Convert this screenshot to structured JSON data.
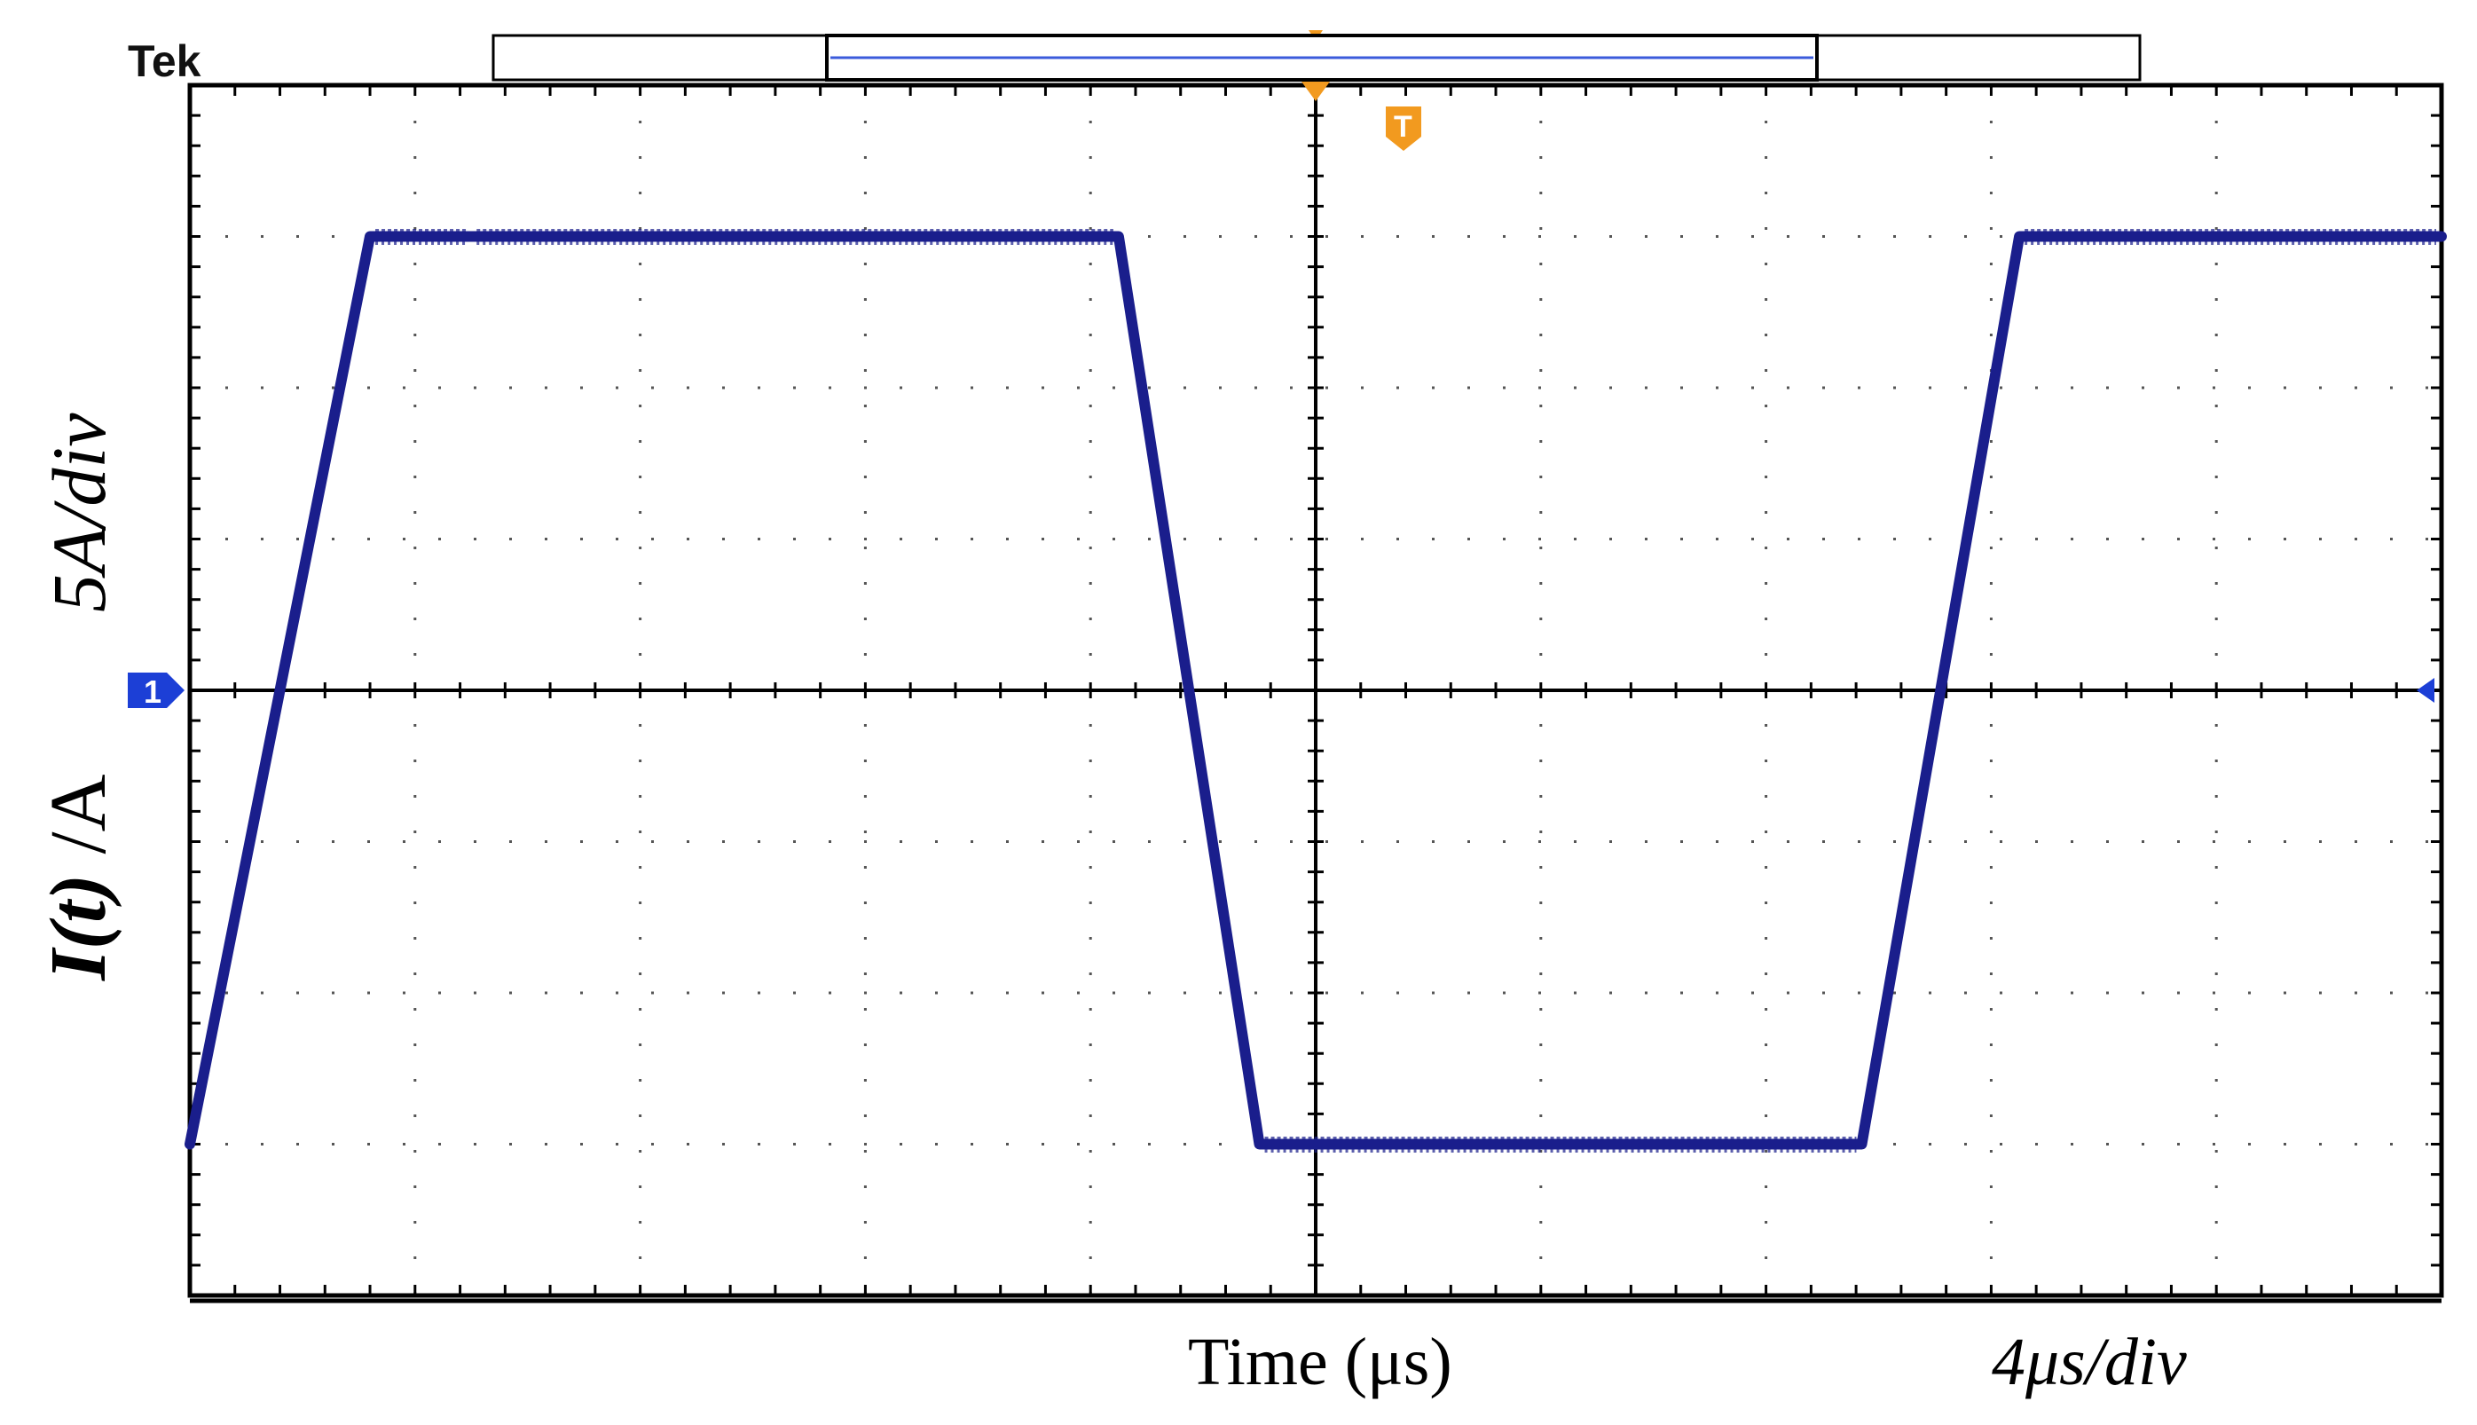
{
  "brand": "Tek",
  "channel_marker": "1",
  "trigger_marker": "T",
  "colors": {
    "trace": "#1a1e8c",
    "grid_major": "#000000",
    "grid_minor": "#555555",
    "marker_orange": "#f29a1f",
    "marker_blue": "#1c3fd6",
    "record_line": "#3b5bdb"
  },
  "chart_data": {
    "type": "line",
    "title": "",
    "xlabel": "Time (μs)",
    "ylabel_name": "I(t)",
    "ylabel_unit": " /A",
    "ylabel_scale": "5A/div",
    "x_scale_label": "4μs/div",
    "x_divisions": 10,
    "y_divisions": 8,
    "xlim": [
      0,
      40
    ],
    "ylim": [
      -20,
      20
    ],
    "grid": true,
    "series": [
      {
        "x": [
          0.0,
          3.2,
          5.0,
          16.5,
          19.0,
          29.7,
          32.5,
          40.0
        ],
        "y": [
          -15.0,
          15.0,
          15.0,
          15.0,
          -15.0,
          -15.0,
          15.0,
          15.0
        ],
        "note_points_omitted": false
      }
    ]
  }
}
